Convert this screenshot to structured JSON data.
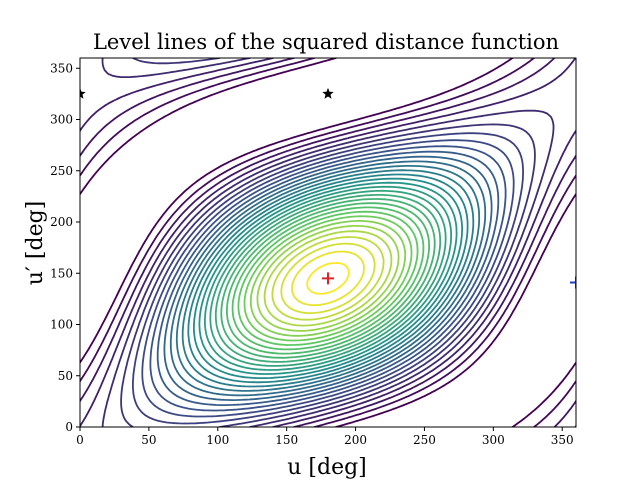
{
  "chart_data": {
    "type": "contour",
    "title": "Level lines of the squared distance function",
    "xlabel": "u [deg]",
    "ylabel": "u′ [deg]",
    "xlim": [
      0,
      360
    ],
    "ylim": [
      0,
      360
    ],
    "x_ticks": [
      0,
      50,
      100,
      150,
      200,
      250,
      300,
      350
    ],
    "y_ticks": [
      0,
      50,
      100,
      150,
      200,
      250,
      300,
      350
    ],
    "grid": false,
    "colormap": [
      "#440154",
      "#3b528b",
      "#21918c",
      "#5ec962",
      "#fde725"
    ],
    "max_point": {
      "u": 180,
      "u_prime": 145,
      "marker": "plus",
      "color": "#d62728"
    },
    "edge_point": {
      "u": 360,
      "u_prime": 141,
      "marker": "plus",
      "color": "#1f3fbf"
    },
    "star_points": [
      {
        "u": 0,
        "u_prime": 325,
        "marker": "star",
        "color": "#000000"
      },
      {
        "u": 180,
        "u_prime": 325,
        "marker": "star",
        "color": "#000000"
      }
    ]
  }
}
